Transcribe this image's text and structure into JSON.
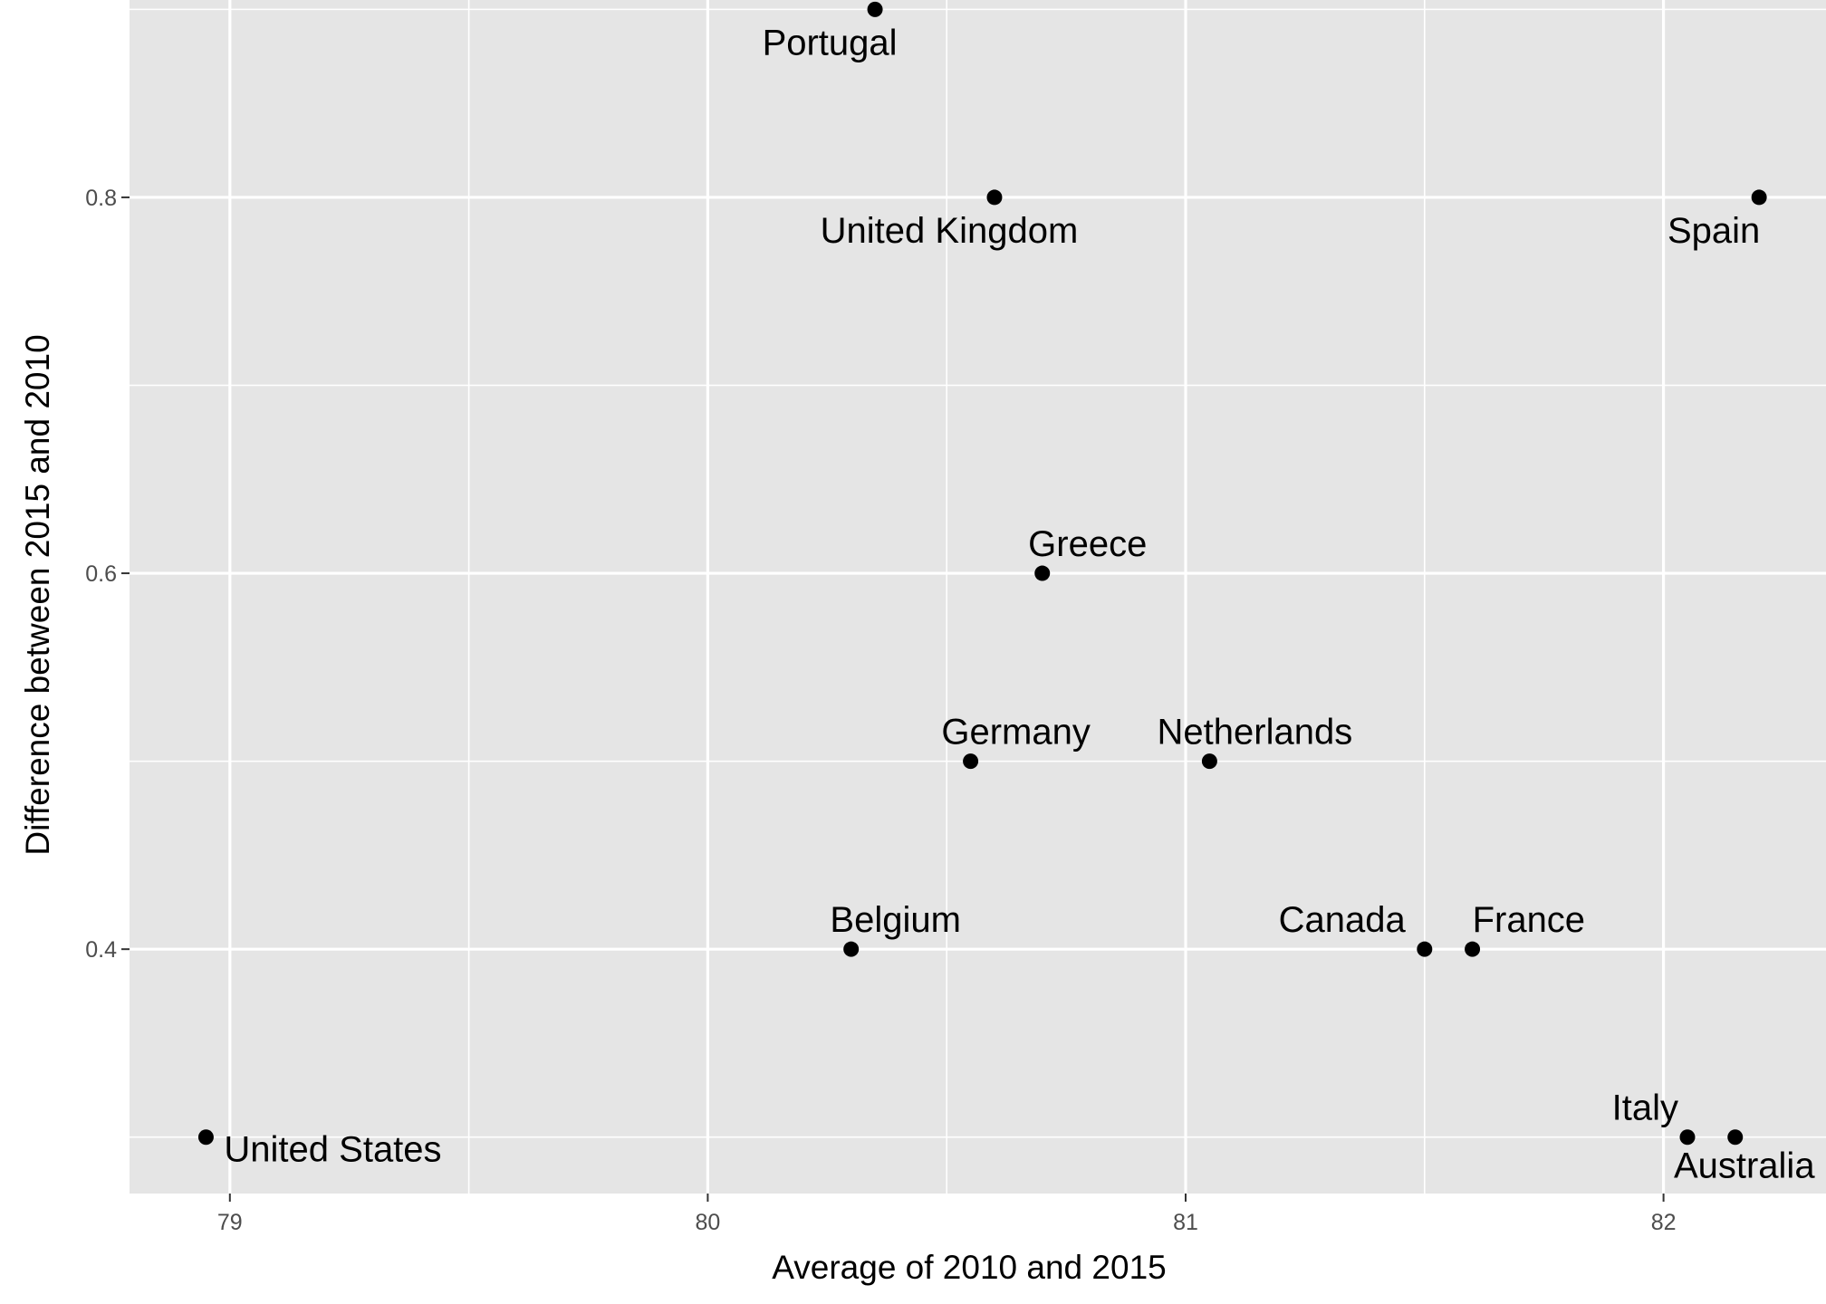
{
  "chart_data": {
    "type": "scatter",
    "xlabel": "Average of 2010 and 2015",
    "ylabel": "Difference between 2015 and 2010",
    "xlim": [
      78.79,
      82.34
    ],
    "ylim": [
      0.27,
      0.905
    ],
    "x_ticks": [
      79,
      80,
      81,
      82
    ],
    "y_ticks": [
      0.4,
      0.6,
      0.8
    ],
    "x_tick_labels": [
      "79",
      "80",
      "81",
      "82"
    ],
    "y_tick_labels": [
      "0.4",
      "0.6",
      "0.8"
    ],
    "grid": true,
    "legend": "none",
    "colors": {
      "panel": "#e5e5e5",
      "grid": "#ffffff",
      "point": "#000000"
    },
    "points": [
      {
        "label": "Portugal",
        "x": 80.35,
        "y": 0.9
      },
      {
        "label": "United Kingdom",
        "x": 80.6,
        "y": 0.8
      },
      {
        "label": "Spain",
        "x": 82.2,
        "y": 0.8
      },
      {
        "label": "Greece",
        "x": 80.7,
        "y": 0.6
      },
      {
        "label": "Germany",
        "x": 80.55,
        "y": 0.5
      },
      {
        "label": "Netherlands",
        "x": 81.05,
        "y": 0.5
      },
      {
        "label": "Belgium",
        "x": 80.3,
        "y": 0.4
      },
      {
        "label": "Canada",
        "x": 81.5,
        "y": 0.4
      },
      {
        "label": "France",
        "x": 81.6,
        "y": 0.4
      },
      {
        "label": "United States",
        "x": 78.95,
        "y": 0.3
      },
      {
        "label": "Italy",
        "x": 82.05,
        "y": 0.3
      },
      {
        "label": "Australia",
        "x": 82.15,
        "y": 0.3
      }
    ]
  }
}
